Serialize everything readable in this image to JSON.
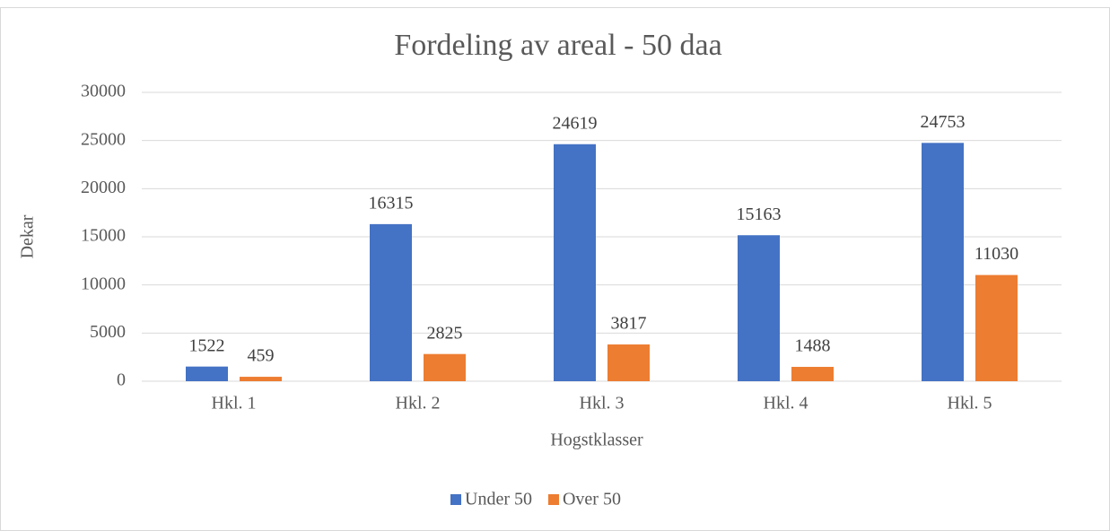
{
  "chart_data": {
    "type": "bar",
    "title": "Fordeling av areal - 50 daa",
    "x_label": "Hogstklasser",
    "y_label": "Dekar",
    "categories": [
      "Hkl. 1",
      "Hkl. 2",
      "Hkl. 3",
      "Hkl. 4",
      "Hkl. 5"
    ],
    "series": [
      {
        "name": "Under 50",
        "color": "#4472c4",
        "values": [
          1522,
          16315,
          24619,
          15163,
          24753
        ]
      },
      {
        "name": "Over 50",
        "color": "#ed7d31",
        "values": [
          459,
          2825,
          3817,
          1488,
          11030
        ]
      }
    ],
    "ylim": [
      0,
      30000
    ],
    "yticks": [
      0,
      5000,
      10000,
      15000,
      20000,
      25000,
      30000
    ],
    "grid": true,
    "legend": "bottom"
  }
}
